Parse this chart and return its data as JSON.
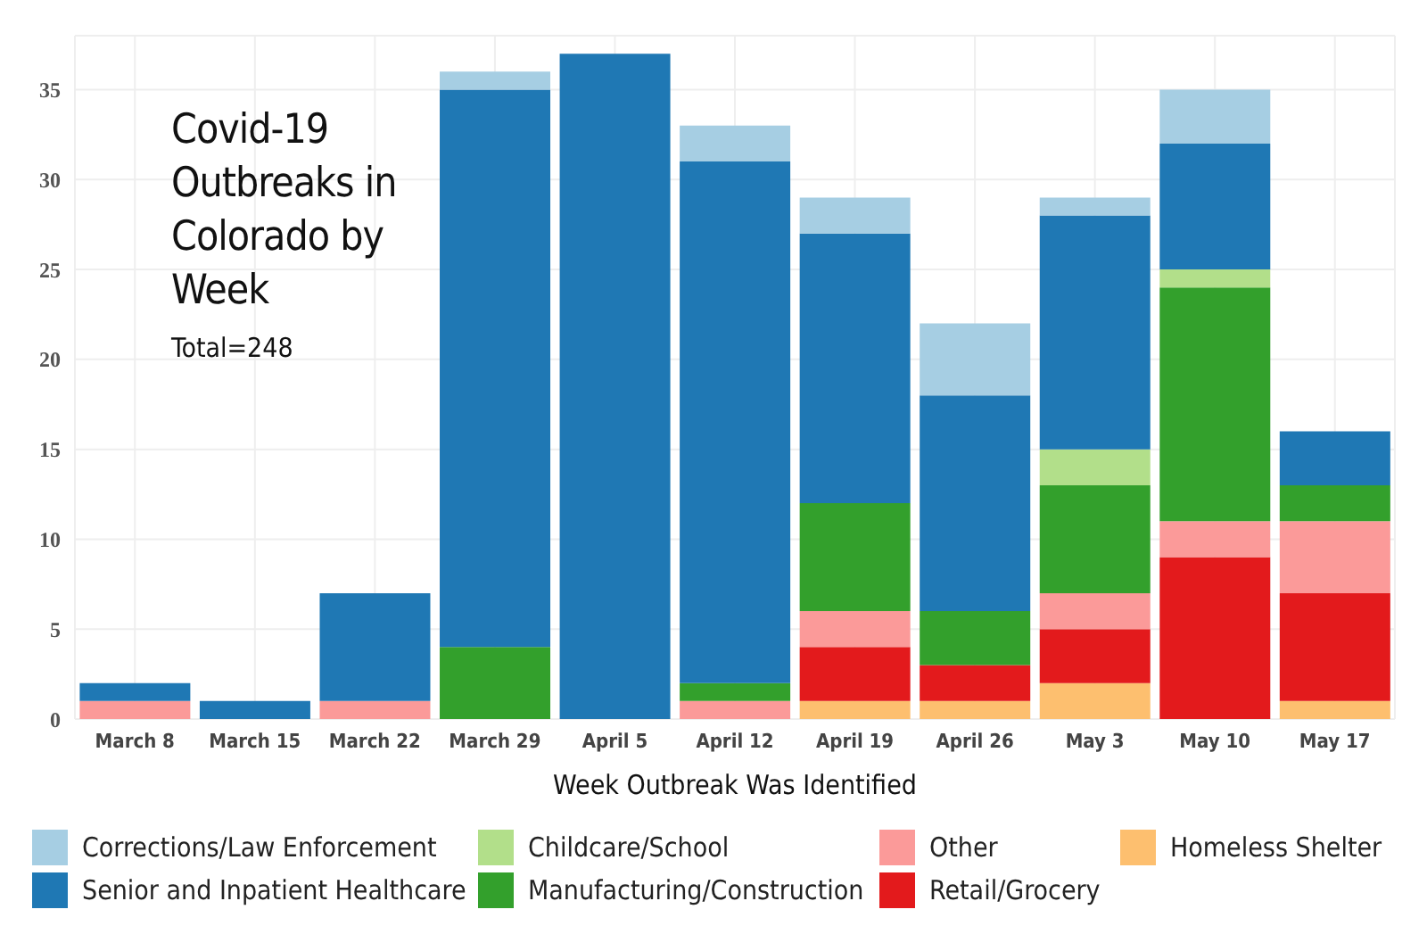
{
  "chart_data": {
    "type": "bar",
    "title": "Covid-19 Outbreaks in Colorado by Week",
    "subtitle": "Total=248",
    "xlabel": "Week Outbreak Was Identified",
    "categories": [
      "March 8",
      "March 15",
      "March 22",
      "March 29",
      "April 5",
      "April 12",
      "April 19",
      "April 26",
      "May 3",
      "May 10",
      "May 17"
    ],
    "stacked": true,
    "ylim": [
      0,
      38
    ],
    "yticks": [
      0,
      5,
      10,
      15,
      20,
      25,
      30,
      35
    ],
    "grid": true,
    "legend": "bottom",
    "series": [
      {
        "name": "Homeless Shelter",
        "color": "#fdbf6f",
        "values": [
          0,
          0,
          0,
          0,
          0,
          0,
          1,
          1,
          2,
          0,
          1
        ]
      },
      {
        "name": "Retail/Grocery",
        "color": "#e31a1c",
        "values": [
          0,
          0,
          0,
          0,
          0,
          0,
          3,
          2,
          3,
          9,
          6
        ]
      },
      {
        "name": "Other",
        "color": "#fb9a99",
        "values": [
          1,
          0,
          1,
          0,
          0,
          1,
          2,
          0,
          2,
          2,
          4
        ]
      },
      {
        "name": "Manufacturing/Construction",
        "color": "#33a02c",
        "values": [
          0,
          0,
          0,
          4,
          0,
          1,
          6,
          3,
          6,
          13,
          2
        ]
      },
      {
        "name": "Childcare/School",
        "color": "#b2df8a",
        "values": [
          0,
          0,
          0,
          0,
          0,
          0,
          0,
          0,
          2,
          1,
          0
        ]
      },
      {
        "name": "Senior and Inpatient Healthcare",
        "color": "#1f78b4",
        "values": [
          1,
          1,
          6,
          31,
          37,
          29,
          15,
          12,
          13,
          7,
          3
        ]
      },
      {
        "name": "Corrections/Law Enforcement",
        "color": "#a6cee3",
        "values": [
          0,
          0,
          0,
          1,
          0,
          2,
          2,
          4,
          1,
          3,
          0
        ]
      }
    ]
  }
}
